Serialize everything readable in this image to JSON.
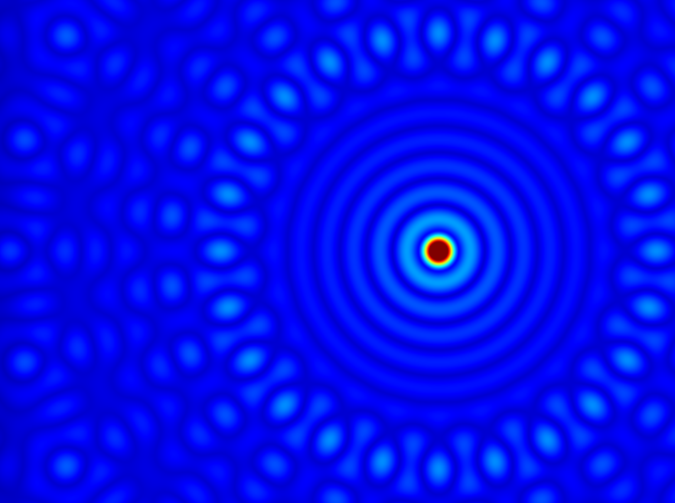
{
  "image": {
    "subject": "diffraction-interference-pattern",
    "colormap": "jet",
    "colormap_stops": [
      "#000080",
      "#0000ff",
      "#00ffff",
      "#ffff00",
      "#ff0000",
      "#800000"
    ],
    "peak_count": 1,
    "peak_color": "#800000",
    "background_color": "#00008a"
  }
}
